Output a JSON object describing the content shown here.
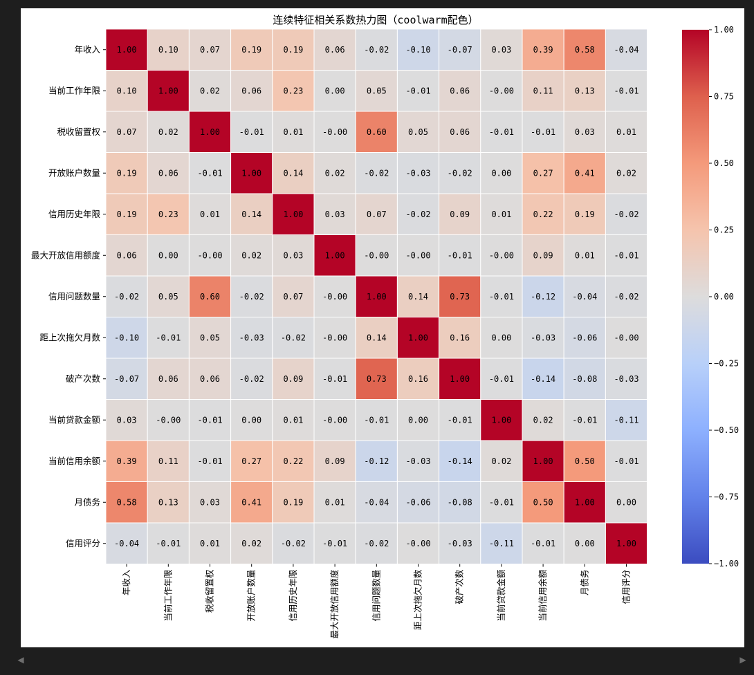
{
  "chart_data": {
    "type": "heatmap",
    "title": "连续特征相关系数热力图（coolwarm配色）",
    "colormap": "coolwarm",
    "categories": [
      "年收入",
      "当前工作年限",
      "税收留置权",
      "开放账户数量",
      "信用历史年限",
      "最大开放信用额度",
      "信用问题数量",
      "距上次拖欠月数",
      "破产次数",
      "当前贷款金额",
      "当前信用余额",
      "月债务",
      "信用评分"
    ],
    "values": [
      [
        1.0,
        0.1,
        0.07,
        0.19,
        0.19,
        0.06,
        -0.02,
        -0.1,
        -0.07,
        0.03,
        0.39,
        0.58,
        -0.04
      ],
      [
        0.1,
        1.0,
        0.02,
        0.06,
        0.23,
        0.0,
        0.05,
        -0.01,
        0.06,
        -0.0,
        0.11,
        0.13,
        -0.01
      ],
      [
        0.07,
        0.02,
        1.0,
        -0.01,
        0.01,
        -0.0,
        0.6,
        0.05,
        0.06,
        -0.01,
        -0.01,
        0.03,
        0.01
      ],
      [
        0.19,
        0.06,
        -0.01,
        1.0,
        0.14,
        0.02,
        -0.02,
        -0.03,
        -0.02,
        0.0,
        0.27,
        0.41,
        0.02
      ],
      [
        0.19,
        0.23,
        0.01,
        0.14,
        1.0,
        0.03,
        0.07,
        -0.02,
        0.09,
        0.01,
        0.22,
        0.19,
        -0.02
      ],
      [
        0.06,
        0.0,
        -0.0,
        0.02,
        0.03,
        1.0,
        -0.0,
        -0.0,
        -0.01,
        -0.0,
        0.09,
        0.01,
        -0.01
      ],
      [
        -0.02,
        0.05,
        0.6,
        -0.02,
        0.07,
        -0.0,
        1.0,
        0.14,
        0.73,
        -0.01,
        -0.12,
        -0.04,
        -0.02
      ],
      [
        -0.1,
        -0.01,
        0.05,
        -0.03,
        -0.02,
        -0.0,
        0.14,
        1.0,
        0.16,
        0.0,
        -0.03,
        -0.06,
        -0.0
      ],
      [
        -0.07,
        0.06,
        0.06,
        -0.02,
        0.09,
        -0.01,
        0.73,
        0.16,
        1.0,
        -0.01,
        -0.14,
        -0.08,
        -0.03
      ],
      [
        0.03,
        -0.0,
        -0.01,
        0.0,
        0.01,
        -0.0,
        -0.01,
        0.0,
        -0.01,
        1.0,
        0.02,
        -0.01,
        -0.11
      ],
      [
        0.39,
        0.11,
        -0.01,
        0.27,
        0.22,
        0.09,
        -0.12,
        -0.03,
        -0.14,
        0.02,
        1.0,
        0.5,
        -0.01
      ],
      [
        0.58,
        0.13,
        0.03,
        0.41,
        0.19,
        0.01,
        -0.04,
        -0.06,
        -0.08,
        -0.01,
        0.5,
        1.0,
        0.0
      ],
      [
        -0.04,
        -0.01,
        0.01,
        0.02,
        -0.02,
        -0.01,
        -0.02,
        -0.0,
        -0.03,
        -0.11,
        -0.01,
        0.0,
        1.0
      ]
    ],
    "value_labels": [
      [
        "1.00",
        "0.10",
        "0.07",
        "0.19",
        "0.19",
        "0.06",
        "-0.02",
        "-0.10",
        "-0.07",
        "0.03",
        "0.39",
        "0.58",
        "-0.04"
      ],
      [
        "0.10",
        "1.00",
        "0.02",
        "0.06",
        "0.23",
        "0.00",
        "0.05",
        "-0.01",
        "0.06",
        "-0.00",
        "0.11",
        "0.13",
        "-0.01"
      ],
      [
        "0.07",
        "0.02",
        "1.00",
        "-0.01",
        "0.01",
        "-0.00",
        "0.60",
        "0.05",
        "0.06",
        "-0.01",
        "-0.01",
        "0.03",
        "0.01"
      ],
      [
        "0.19",
        "0.06",
        "-0.01",
        "1.00",
        "0.14",
        "0.02",
        "-0.02",
        "-0.03",
        "-0.02",
        "0.00",
        "0.27",
        "0.41",
        "0.02"
      ],
      [
        "0.19",
        "0.23",
        "0.01",
        "0.14",
        "1.00",
        "0.03",
        "0.07",
        "-0.02",
        "0.09",
        "0.01",
        "0.22",
        "0.19",
        "-0.02"
      ],
      [
        "0.06",
        "0.00",
        "-0.00",
        "0.02",
        "0.03",
        "1.00",
        "-0.00",
        "-0.00",
        "-0.01",
        "-0.00",
        "0.09",
        "0.01",
        "-0.01"
      ],
      [
        "-0.02",
        "0.05",
        "0.60",
        "-0.02",
        "0.07",
        "-0.00",
        "1.00",
        "0.14",
        "0.73",
        "-0.01",
        "-0.12",
        "-0.04",
        "-0.02"
      ],
      [
        "-0.10",
        "-0.01",
        "0.05",
        "-0.03",
        "-0.02",
        "-0.00",
        "0.14",
        "1.00",
        "0.16",
        "0.00",
        "-0.03",
        "-0.06",
        "-0.00"
      ],
      [
        "-0.07",
        "0.06",
        "0.06",
        "-0.02",
        "0.09",
        "-0.01",
        "0.73",
        "0.16",
        "1.00",
        "-0.01",
        "-0.14",
        "-0.08",
        "-0.03"
      ],
      [
        "0.03",
        "-0.00",
        "-0.01",
        "0.00",
        "0.01",
        "-0.00",
        "-0.01",
        "0.00",
        "-0.01",
        "1.00",
        "0.02",
        "-0.01",
        "-0.11"
      ],
      [
        "0.39",
        "0.11",
        "-0.01",
        "0.27",
        "0.22",
        "0.09",
        "-0.12",
        "-0.03",
        "-0.14",
        "0.02",
        "1.00",
        "0.50",
        "-0.01"
      ],
      [
        "0.58",
        "0.13",
        "0.03",
        "0.41",
        "0.19",
        "0.01",
        "-0.04",
        "-0.06",
        "-0.08",
        "-0.01",
        "0.50",
        "1.00",
        "0.00"
      ],
      [
        "-0.04",
        "-0.01",
        "0.01",
        "0.02",
        "-0.02",
        "-0.01",
        "-0.02",
        "-0.00",
        "-0.03",
        "-0.11",
        "-0.01",
        "0.00",
        "1.00"
      ]
    ],
    "colorbar": {
      "range": [
        -1.0,
        1.0
      ],
      "ticks": [
        1.0,
        0.75,
        0.5,
        0.25,
        0.0,
        -0.25,
        -0.5,
        -0.75,
        -1.0
      ],
      "tick_labels": [
        "1.00",
        "0.75",
        "0.50",
        "0.25",
        "0.00",
        "−0.25",
        "−0.50",
        "−0.75",
        "−1.00"
      ]
    },
    "xlabel": "",
    "ylabel": "",
    "grid": false
  },
  "viewer": {
    "scroll_left_icon": "◀",
    "scroll_right_icon": "▶"
  }
}
